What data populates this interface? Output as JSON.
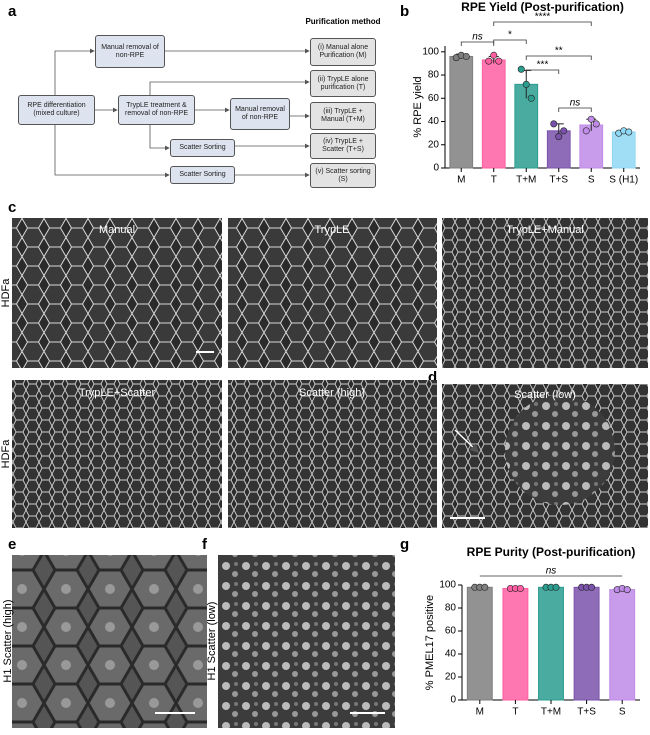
{
  "panel_labels": [
    "a",
    "b",
    "c",
    "d",
    "e",
    "f",
    "g"
  ],
  "diagram": {
    "header": "Purification method",
    "nodes": [
      "RPE differentiation (mixed culture)",
      "Manual removal of non-RPE",
      "TrypLE treatment & removal of non-RPE",
      "Manual removal of non-RPE",
      "Scatter Sorting",
      "Scatter Sorting"
    ],
    "outcomes": [
      "(i) Manual alone Purification (M)",
      "(ii) TrypLE alone purification  (T)",
      "(iii) TrypLE + Manual (T+M)",
      "(iv) TrypLE + Scatter (T+S)",
      "(v) Scatter sorting (S)"
    ]
  },
  "images": {
    "row_labels": [
      "HDFa",
      "HDFa"
    ],
    "panels": [
      "Manual",
      "TrypLE",
      "TrypLE+Manual",
      "TrypLE+Scatter",
      "Scatter (high)",
      "Scatter (low)"
    ],
    "side_labels": [
      "H1 Scatter (high)",
      "H1 Scatter (low)"
    ]
  },
  "chart_data": [
    {
      "type": "bar",
      "title": "RPE Yield (Post-purification)",
      "y_label": "% RPE yield",
      "categories": [
        "M",
        "T",
        "T+M",
        "T+S",
        "S",
        "S (H1)"
      ],
      "values": [
        96,
        93,
        72,
        32,
        37,
        31
      ],
      "errors": [
        2,
        3,
        12,
        6,
        5,
        1
      ],
      "points": [
        [
          95,
          97,
          96
        ],
        [
          92,
          97,
          92
        ],
        [
          85,
          72,
          60
        ],
        [
          38,
          27,
          32
        ],
        [
          32,
          42,
          38
        ],
        [
          30,
          32,
          31
        ]
      ],
      "colors": [
        "#7f7f7f",
        "#ff5fa2",
        "#2a9d8f",
        "#7b52ab",
        "#c08ae8",
        "#8fd8f5"
      ],
      "ylim": [
        0,
        105
      ],
      "yticks": [
        0,
        20,
        40,
        60,
        80,
        100
      ],
      "annotations": [
        {
          "label": "ns",
          "from": "M",
          "to": "T"
        },
        {
          "label": "****",
          "from": "T",
          "to": "S"
        },
        {
          "label": "*",
          "from": "T",
          "to": "T+M"
        },
        {
          "label": "**",
          "from": "T+M",
          "to": "S"
        },
        {
          "label": "***",
          "from": "T+M",
          "to": "T+S"
        },
        {
          "label": "ns",
          "from": "T+S",
          "to": "S"
        }
      ]
    },
    {
      "type": "bar",
      "title": "RPE Purity (Post-purification)",
      "y_label": "% PMEL17 positive",
      "categories": [
        "M",
        "T",
        "T+M",
        "T+S",
        "S"
      ],
      "values": [
        98,
        97,
        98,
        98,
        96
      ],
      "errors": [
        0.5,
        0.5,
        0.5,
        0.5,
        1
      ],
      "points": [
        [
          98,
          98,
          98
        ],
        [
          97,
          97,
          97
        ],
        [
          98,
          98,
          98
        ],
        [
          98,
          98,
          98
        ],
        [
          96,
          97,
          96
        ]
      ],
      "colors": [
        "#7f7f7f",
        "#ff5fa2",
        "#2a9d8f",
        "#7b52ab",
        "#c08ae8"
      ],
      "ylim": [
        0,
        100
      ],
      "yticks": [
        0,
        20,
        40,
        60,
        80,
        100
      ],
      "annotations": [
        {
          "label": "ns",
          "from": "M",
          "to": "S"
        }
      ]
    }
  ]
}
